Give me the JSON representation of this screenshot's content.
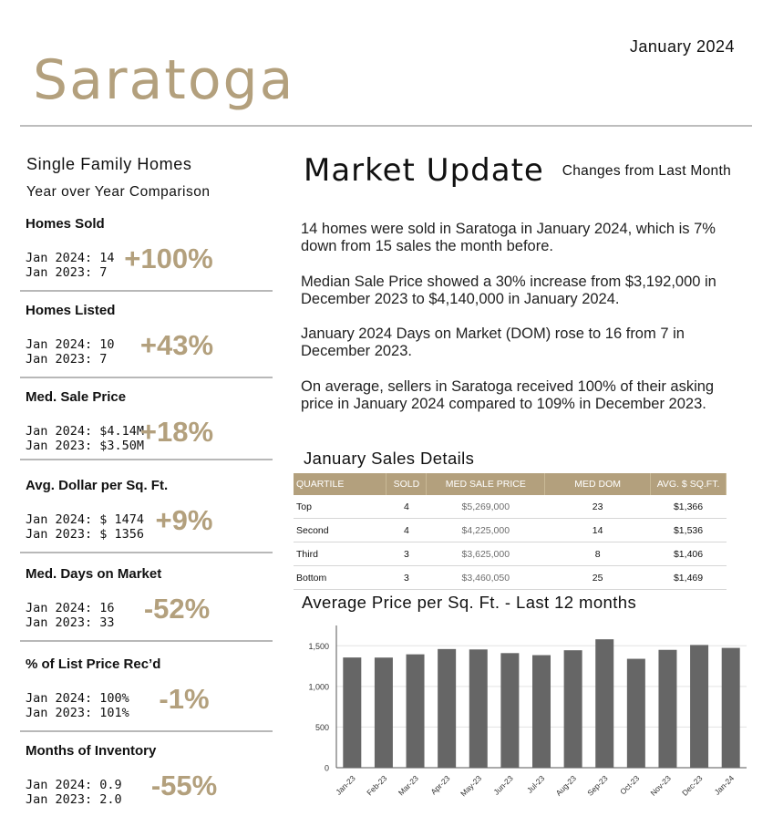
{
  "header": {
    "date": "January 2024",
    "city": "Saratoga"
  },
  "left": {
    "property_type": "Single Family Homes",
    "comparison": "Year over Year Comparison",
    "stats": [
      {
        "title": "Homes Sold",
        "row1": "Jan 2024:  14",
        "row2": "Jan 2023:  7",
        "change": "+100%"
      },
      {
        "title": "Homes Listed",
        "row1": "Jan 2024:  10",
        "row2": "Jan 2023:  7",
        "change": "+43%"
      },
      {
        "title": "Med. Sale Price",
        "row1": "Jan 2024:  $4.14M",
        "row2": "Jan 2023:  $3.50M",
        "change": "+18%"
      },
      {
        "title": "Avg. Dollar per Sq. Ft.",
        "row1": "Jan 2024: $ 1474",
        "row2": "Jan 2023: $ 1356",
        "change": "+9%"
      },
      {
        "title": "Med. Days on Market",
        "row1": "Jan 2024:  16",
        "row2": "Jan 2023:  33",
        "change": "-52%"
      },
      {
        "title": "% of List Price Rec’d",
        "row1": "Jan 2024:  100%",
        "row2": "Jan 2023:  101%",
        "change": "-1%"
      },
      {
        "title": "Months of Inventory",
        "row1": "Jan 2024:  0.9",
        "row2": "Jan 2023:  2.0",
        "change": "-55%"
      }
    ]
  },
  "right": {
    "title": "Market Update",
    "subtitle": "Changes from Last Month",
    "paragraphs": [
      "14 homes were sold in Saratoga in January 2024, which is 7% down from 15 sales the month before.",
      "Median Sale Price showed a 30% increase from $3,192,000 in December 2023 to $4,140,000 in January 2024.",
      "January 2024 Days on Market (DOM) rose to 16 from 7 in December 2023.",
      "On average, sellers in Saratoga received 100% of their asking price in January 2024 compared to 109% in December 2023."
    ],
    "sales_title": "January Sales Details",
    "sales_table": {
      "headers": [
        "QUARTILE",
        "SOLD",
        "MED SALE PRICE",
        "MED DOM",
        "AVG. $ SQ.FT."
      ],
      "rows": [
        [
          "Top",
          "4",
          "$5,269,000",
          "23",
          "$1,366"
        ],
        [
          "Second",
          "4",
          "$4,225,000",
          "14",
          "$1,536"
        ],
        [
          "Third",
          "3",
          "$3,625,000",
          "8",
          "$1,406"
        ],
        [
          "Bottom",
          "3",
          "$3,460,050",
          "25",
          "$1,469"
        ]
      ]
    },
    "chart_title": "Average Price per Sq. Ft. - Last 12 months"
  },
  "chart_data": {
    "type": "bar",
    "title": "Average Price per Sq. Ft. - Last 12 months",
    "categories": [
      "Jan-23",
      "Feb-23",
      "Mar-23",
      "Apr-23",
      "May-23",
      "Jun-23",
      "Jul-23",
      "Aug-23",
      "Sep-23",
      "Oct-23",
      "Nov-23",
      "Dec-23",
      "Jan-24"
    ],
    "values": [
      1356,
      1355,
      1395,
      1460,
      1455,
      1410,
      1385,
      1445,
      1580,
      1340,
      1450,
      1510,
      1474
    ],
    "ylim": [
      0,
      1750
    ],
    "yticks": [
      0,
      500,
      1000,
      1500
    ],
    "ytick_labels": [
      "0",
      "500",
      "1,000",
      "1,500"
    ],
    "grid": true,
    "bar_color": "#666666"
  }
}
